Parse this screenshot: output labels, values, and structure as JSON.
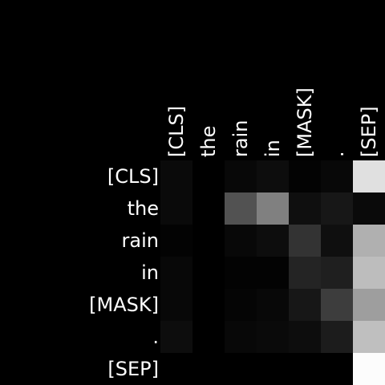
{
  "chart_data": {
    "type": "heatmap",
    "x_tokens": [
      "[CLS]",
      "the",
      "rain",
      "in",
      "[MASK]",
      ".",
      "[SEP]"
    ],
    "y_tokens": [
      "[CLS]",
      "the",
      "rain",
      "in",
      "[MASK]",
      ".",
      "[SEP]"
    ],
    "value_range": [
      0,
      1
    ],
    "colormap": "grayscale",
    "values": [
      [
        0.04,
        0.0,
        0.03,
        0.05,
        0.01,
        0.03,
        0.88
      ],
      [
        0.04,
        0.0,
        0.32,
        0.5,
        0.06,
        0.09,
        0.04
      ],
      [
        0.01,
        0.0,
        0.03,
        0.05,
        0.2,
        0.06,
        0.69
      ],
      [
        0.03,
        0.0,
        0.01,
        0.01,
        0.14,
        0.12,
        0.74
      ],
      [
        0.03,
        0.0,
        0.02,
        0.03,
        0.09,
        0.24,
        0.62
      ],
      [
        0.05,
        0.0,
        0.03,
        0.04,
        0.05,
        0.11,
        0.75
      ],
      [
        0.0,
        0.0,
        0.0,
        0.0,
        0.0,
        0.0,
        0.99
      ]
    ]
  }
}
